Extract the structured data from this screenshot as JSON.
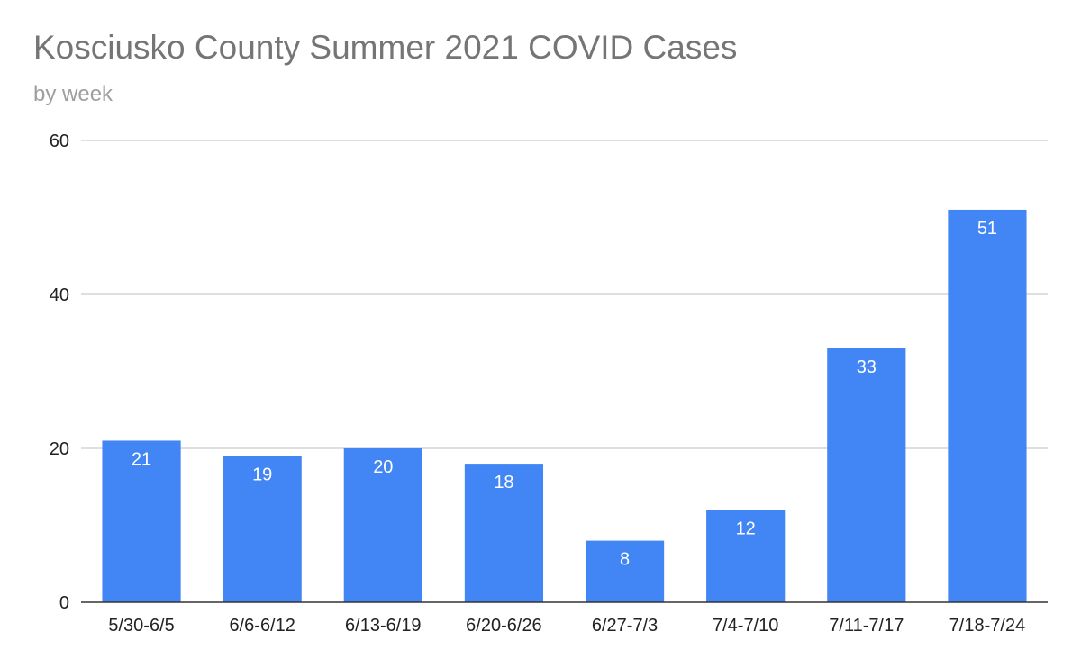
{
  "chart_data": {
    "type": "bar",
    "title": "Kosciusko County Summer 2021 COVID Cases",
    "subtitle": "by week",
    "xlabel": "",
    "ylabel": "",
    "categories": [
      "5/30-6/5",
      "6/6-6/12",
      "6/13-6/19",
      "6/20-6/26",
      "6/27-7/3",
      "7/4-7/10",
      "7/11-7/17",
      "7/18-7/24"
    ],
    "values": [
      21,
      19,
      20,
      18,
      8,
      12,
      33,
      51
    ],
    "ylim": [
      0,
      60
    ],
    "yticks": [
      0,
      20,
      40,
      60
    ],
    "grid": true,
    "data_labels": true,
    "bar_color": "#4285f4",
    "legend": "none"
  }
}
